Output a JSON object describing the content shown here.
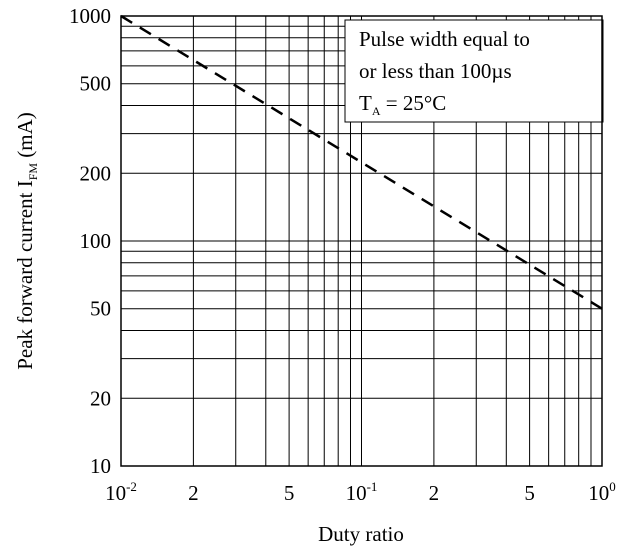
{
  "chart_data": {
    "type": "line",
    "title": "",
    "xlabel": "Duty ratio",
    "ylabel": {
      "main": "Peak forward current I",
      "sub": "FM",
      "unit": " (mA)"
    },
    "x_scale": "log",
    "y_scale": "log",
    "xlim": [
      0.01,
      1
    ],
    "ylim": [
      10,
      1000
    ],
    "grid": true,
    "x_ticks": [
      {
        "value": 0.01,
        "base": "10",
        "exp": "-2"
      },
      {
        "value": 0.02,
        "label": "2"
      },
      {
        "value": 0.05,
        "label": "5"
      },
      {
        "value": 0.1,
        "base": "10",
        "exp": "-1"
      },
      {
        "value": 0.2,
        "label": "2"
      },
      {
        "value": 0.5,
        "label": "5"
      },
      {
        "value": 1,
        "base": "10",
        "exp": "0"
      }
    ],
    "y_ticks": [
      {
        "value": 1000,
        "label": "1000"
      },
      {
        "value": 500,
        "label": "500"
      },
      {
        "value": 200,
        "label": "200"
      },
      {
        "value": 100,
        "label": "100"
      },
      {
        "value": 50,
        "label": "50"
      },
      {
        "value": 20,
        "label": "20"
      },
      {
        "value": 10,
        "label": "10"
      }
    ],
    "series": [
      {
        "style": "dashed",
        "x": [
          0.01,
          1
        ],
        "y": [
          1000,
          50
        ]
      }
    ],
    "annotation": {
      "line1": "Pulse width equal to",
      "line2": "or less than 100µs",
      "line3_main": "T",
      "line3_sub": "A",
      "line3_rest": " = 25°C"
    }
  }
}
